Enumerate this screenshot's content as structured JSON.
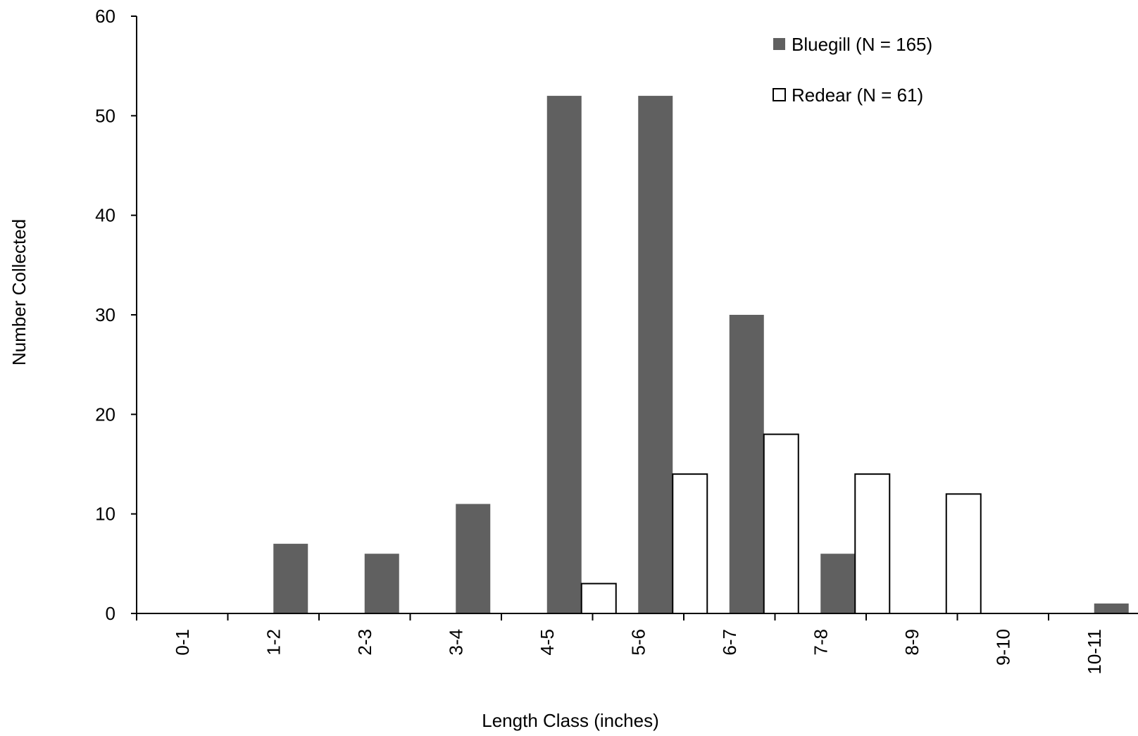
{
  "chart_data": {
    "type": "bar",
    "title": "",
    "xlabel": "Length Class (inches)",
    "ylabel": "Number Collected",
    "ylim": [
      0,
      60
    ],
    "yticks": [
      0,
      10,
      20,
      30,
      40,
      50,
      60
    ],
    "grid": false,
    "legend_position": "top-right",
    "categories": [
      "0-1",
      "1-2",
      "2-3",
      "3-4",
      "4-5",
      "5-6",
      "6-7",
      "7-8",
      "8-9",
      "9-10",
      "10-11"
    ],
    "series": [
      {
        "name": "Bluegill (N = 165)",
        "color": "#606060",
        "values": [
          0,
          7,
          6,
          11,
          52,
          52,
          30,
          6,
          0,
          0,
          1
        ]
      },
      {
        "name": "Redear (N = 61)",
        "color": "#ffffff",
        "values": [
          0,
          0,
          0,
          0,
          3,
          14,
          18,
          14,
          12,
          0,
          0
        ]
      }
    ]
  }
}
